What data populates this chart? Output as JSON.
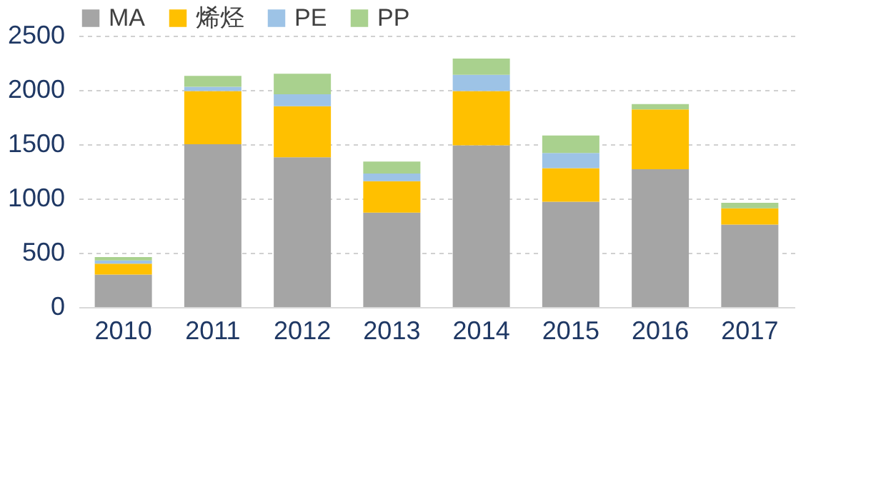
{
  "chart_data": {
    "type": "bar",
    "stacked": true,
    "categories": [
      "2010",
      "2011",
      "2012",
      "2013",
      "2014",
      "2015",
      "2016",
      "2017"
    ],
    "series": [
      {
        "name": "MA",
        "color": "#a5a5a5",
        "values": [
          300,
          1500,
          1380,
          870,
          1490,
          970,
          1270,
          760
        ]
      },
      {
        "name": "烯烃",
        "color": "#ffc000",
        "values": [
          100,
          490,
          470,
          290,
          500,
          310,
          550,
          150
        ]
      },
      {
        "name": "PE",
        "color": "#9dc3e6",
        "values": [
          30,
          40,
          110,
          70,
          150,
          140,
          0,
          0
        ]
      },
      {
        "name": "PP",
        "color": "#a9d18e",
        "values": [
          30,
          100,
          190,
          110,
          150,
          160,
          50,
          50
        ]
      }
    ],
    "ylim": [
      0,
      2500
    ],
    "yticks": [
      0,
      500,
      1000,
      1500,
      2000,
      2500
    ],
    "grid": "y",
    "legend": "top"
  }
}
